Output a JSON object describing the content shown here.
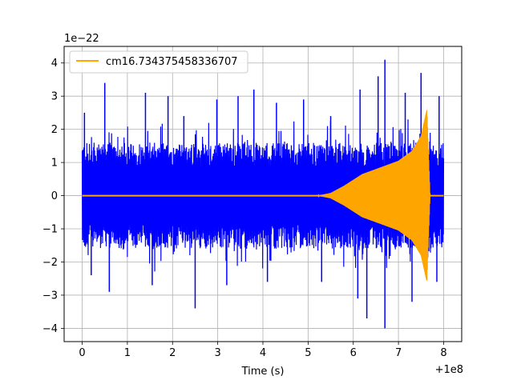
{
  "chart_data": {
    "type": "line",
    "title": "",
    "xlabel": "Time (s)",
    "ylabel": "",
    "x_offset_label": "+1e8",
    "y_scale_label": "1e−22",
    "xlim": [
      -0.4,
      8.4
    ],
    "ylim": [
      -4.4,
      4.5
    ],
    "x_ticks": [
      0,
      1,
      2,
      3,
      4,
      5,
      6,
      7,
      8
    ],
    "x_tick_labels": [
      "0",
      "1",
      "2",
      "3",
      "4",
      "5",
      "6",
      "7",
      "8"
    ],
    "y_ticks": [
      -4,
      -3,
      -2,
      -1,
      0,
      1,
      2,
      3,
      4
    ],
    "y_tick_labels": [
      "−4",
      "−3",
      "−2",
      "−1",
      "0",
      "1",
      "2",
      "3",
      "4"
    ],
    "grid": true,
    "legend_position": "top-left",
    "series": [
      {
        "kind": "noise",
        "color": "#0000ff",
        "x_range": [
          0,
          8.0
        ],
        "typical_envelope": 1.6,
        "peaks_positive": [
          {
            "x": 0.05,
            "y": 2.5
          },
          {
            "x": 0.5,
            "y": 3.4
          },
          {
            "x": 1.4,
            "y": 3.1
          },
          {
            "x": 1.9,
            "y": 3.0
          },
          {
            "x": 2.25,
            "y": 2.4
          },
          {
            "x": 2.98,
            "y": 2.9
          },
          {
            "x": 3.45,
            "y": 3.0
          },
          {
            "x": 3.8,
            "y": 3.2
          },
          {
            "x": 4.3,
            "y": 2.8
          },
          {
            "x": 4.9,
            "y": 2.9
          },
          {
            "x": 5.5,
            "y": 2.4
          },
          {
            "x": 6.15,
            "y": 3.2
          },
          {
            "x": 6.55,
            "y": 3.6
          },
          {
            "x": 6.7,
            "y": 4.1
          },
          {
            "x": 7.15,
            "y": 3.1
          },
          {
            "x": 7.5,
            "y": 3.7
          },
          {
            "x": 7.9,
            "y": 3.0
          }
        ],
        "peaks_negative": [
          {
            "x": 0.2,
            "y": -2.4
          },
          {
            "x": 0.6,
            "y": -2.9
          },
          {
            "x": 1.55,
            "y": -2.7
          },
          {
            "x": 2.5,
            "y": -3.4
          },
          {
            "x": 3.2,
            "y": -2.7
          },
          {
            "x": 4.1,
            "y": -2.6
          },
          {
            "x": 5.3,
            "y": -2.6
          },
          {
            "x": 6.1,
            "y": -3.1
          },
          {
            "x": 6.3,
            "y": -3.7
          },
          {
            "x": 6.7,
            "y": -4.0
          },
          {
            "x": 7.3,
            "y": -3.2
          },
          {
            "x": 7.85,
            "y": -2.6
          }
        ]
      },
      {
        "name": "cm16.734375458336707",
        "kind": "chirp",
        "color": "#ffa500",
        "envelope": [
          {
            "x": 0,
            "y": 0
          },
          {
            "x": 5.2,
            "y": 0
          },
          {
            "x": 5.5,
            "y": 0.08
          },
          {
            "x": 5.8,
            "y": 0.3
          },
          {
            "x": 6.2,
            "y": 0.65
          },
          {
            "x": 6.6,
            "y": 0.85
          },
          {
            "x": 7.0,
            "y": 1.05
          },
          {
            "x": 7.3,
            "y": 1.35
          },
          {
            "x": 7.5,
            "y": 1.8
          },
          {
            "x": 7.63,
            "y": 2.6
          },
          {
            "x": 7.7,
            "y": 0
          },
          {
            "x": 8.0,
            "y": 0
          }
        ]
      }
    ]
  }
}
